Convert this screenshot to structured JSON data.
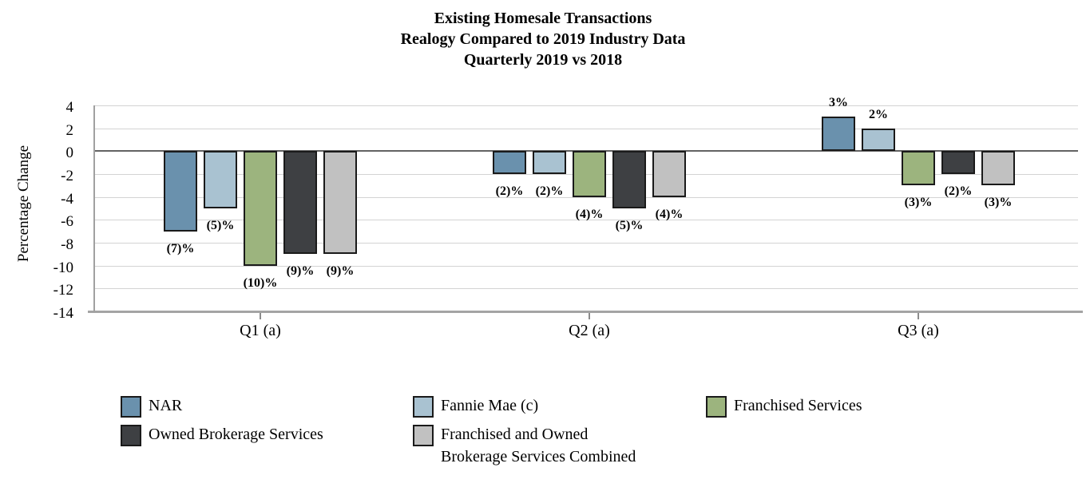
{
  "title": {
    "line1": "Existing Homesale Transactions",
    "line2": "Realogy Compared to 2019 Industry Data",
    "line3": "Quarterly 2019 vs 2018"
  },
  "chart_data": {
    "type": "bar",
    "title": "Existing Homesale Transactions — Realogy Compared to 2019 Industry Data — Quarterly 2019 vs 2018",
    "xlabel": "",
    "ylabel": "Percentage Change",
    "ylim": [
      -14,
      4
    ],
    "yticks": [
      4,
      2,
      0,
      -2,
      -4,
      -6,
      -8,
      -10,
      -12,
      -14
    ],
    "grid": "horizontal",
    "legend_position": "bottom",
    "categories": [
      "Q1 (a)",
      "Q2 (a)",
      "Q3 (a)"
    ],
    "series": [
      {
        "name": "NAR",
        "color": "#6a91ad",
        "values": [
          -7,
          -2,
          3
        ],
        "labels": [
          "(7)%",
          "(2)%",
          "3%"
        ]
      },
      {
        "name": "Fannie Mae (c)",
        "color": "#a9c2d1",
        "values": [
          -5,
          -2,
          2
        ],
        "labels": [
          "(5)%",
          "(2)%",
          "2%"
        ]
      },
      {
        "name": "Franchised Services",
        "color": "#9cb47e",
        "values": [
          -10,
          -4,
          -3
        ],
        "labels": [
          "(10)%",
          "(4)%",
          "(3)%"
        ]
      },
      {
        "name": "Owned Brokerage Services",
        "color": "#3e4043",
        "values": [
          -9,
          -5,
          -2
        ],
        "labels": [
          "(9)%",
          "(5)%",
          "(2)%"
        ]
      },
      {
        "name": "Franchised and Owned Brokerage Services Combined",
        "color": "#c1c1c1",
        "values": [
          -9,
          -4,
          -3
        ],
        "labels": [
          "(9)%",
          "(4)%",
          "(3)%"
        ]
      }
    ],
    "bar_border_color": "#1a1a1a",
    "grid_color": "#d3d3d3",
    "zero_line_color": "#636363",
    "axis_color": "#a4a4a4"
  },
  "legend": {
    "items": [
      {
        "label": "NAR"
      },
      {
        "label": "Fannie Mae (c)"
      },
      {
        "label": "Franchised Services"
      },
      {
        "label": "Owned Brokerage Services"
      },
      {
        "label": "Franchised and Owned",
        "label2": "Brokerage Services Combined"
      }
    ]
  }
}
